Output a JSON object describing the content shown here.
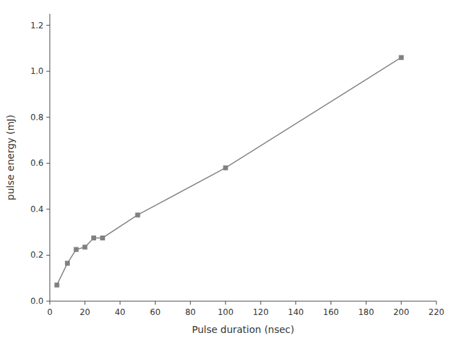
{
  "chart_data": {
    "type": "line",
    "x": [
      4,
      10,
      15,
      20,
      25,
      30,
      50,
      100,
      200
    ],
    "values": [
      0.07,
      0.165,
      0.225,
      0.235,
      0.275,
      0.275,
      0.375,
      0.58,
      1.06
    ],
    "color": "#808080",
    "marker": "square",
    "line_style": "solid",
    "xlabel": "Pulse duration (nsec)",
    "ylabel": "pulse energy (mJ)",
    "xlim": [
      0,
      220
    ],
    "ylim": [
      0,
      1.25
    ],
    "xticks": [
      0,
      20,
      40,
      60,
      80,
      100,
      120,
      140,
      160,
      180,
      200,
      220
    ],
    "yticks": [
      {
        "value": 0.0,
        "label": "0.0"
      },
      0.2,
      0.4,
      0.6,
      0.8,
      {
        "value": 1.0,
        "label": "1.0"
      },
      1.2
    ],
    "grid": false
  }
}
